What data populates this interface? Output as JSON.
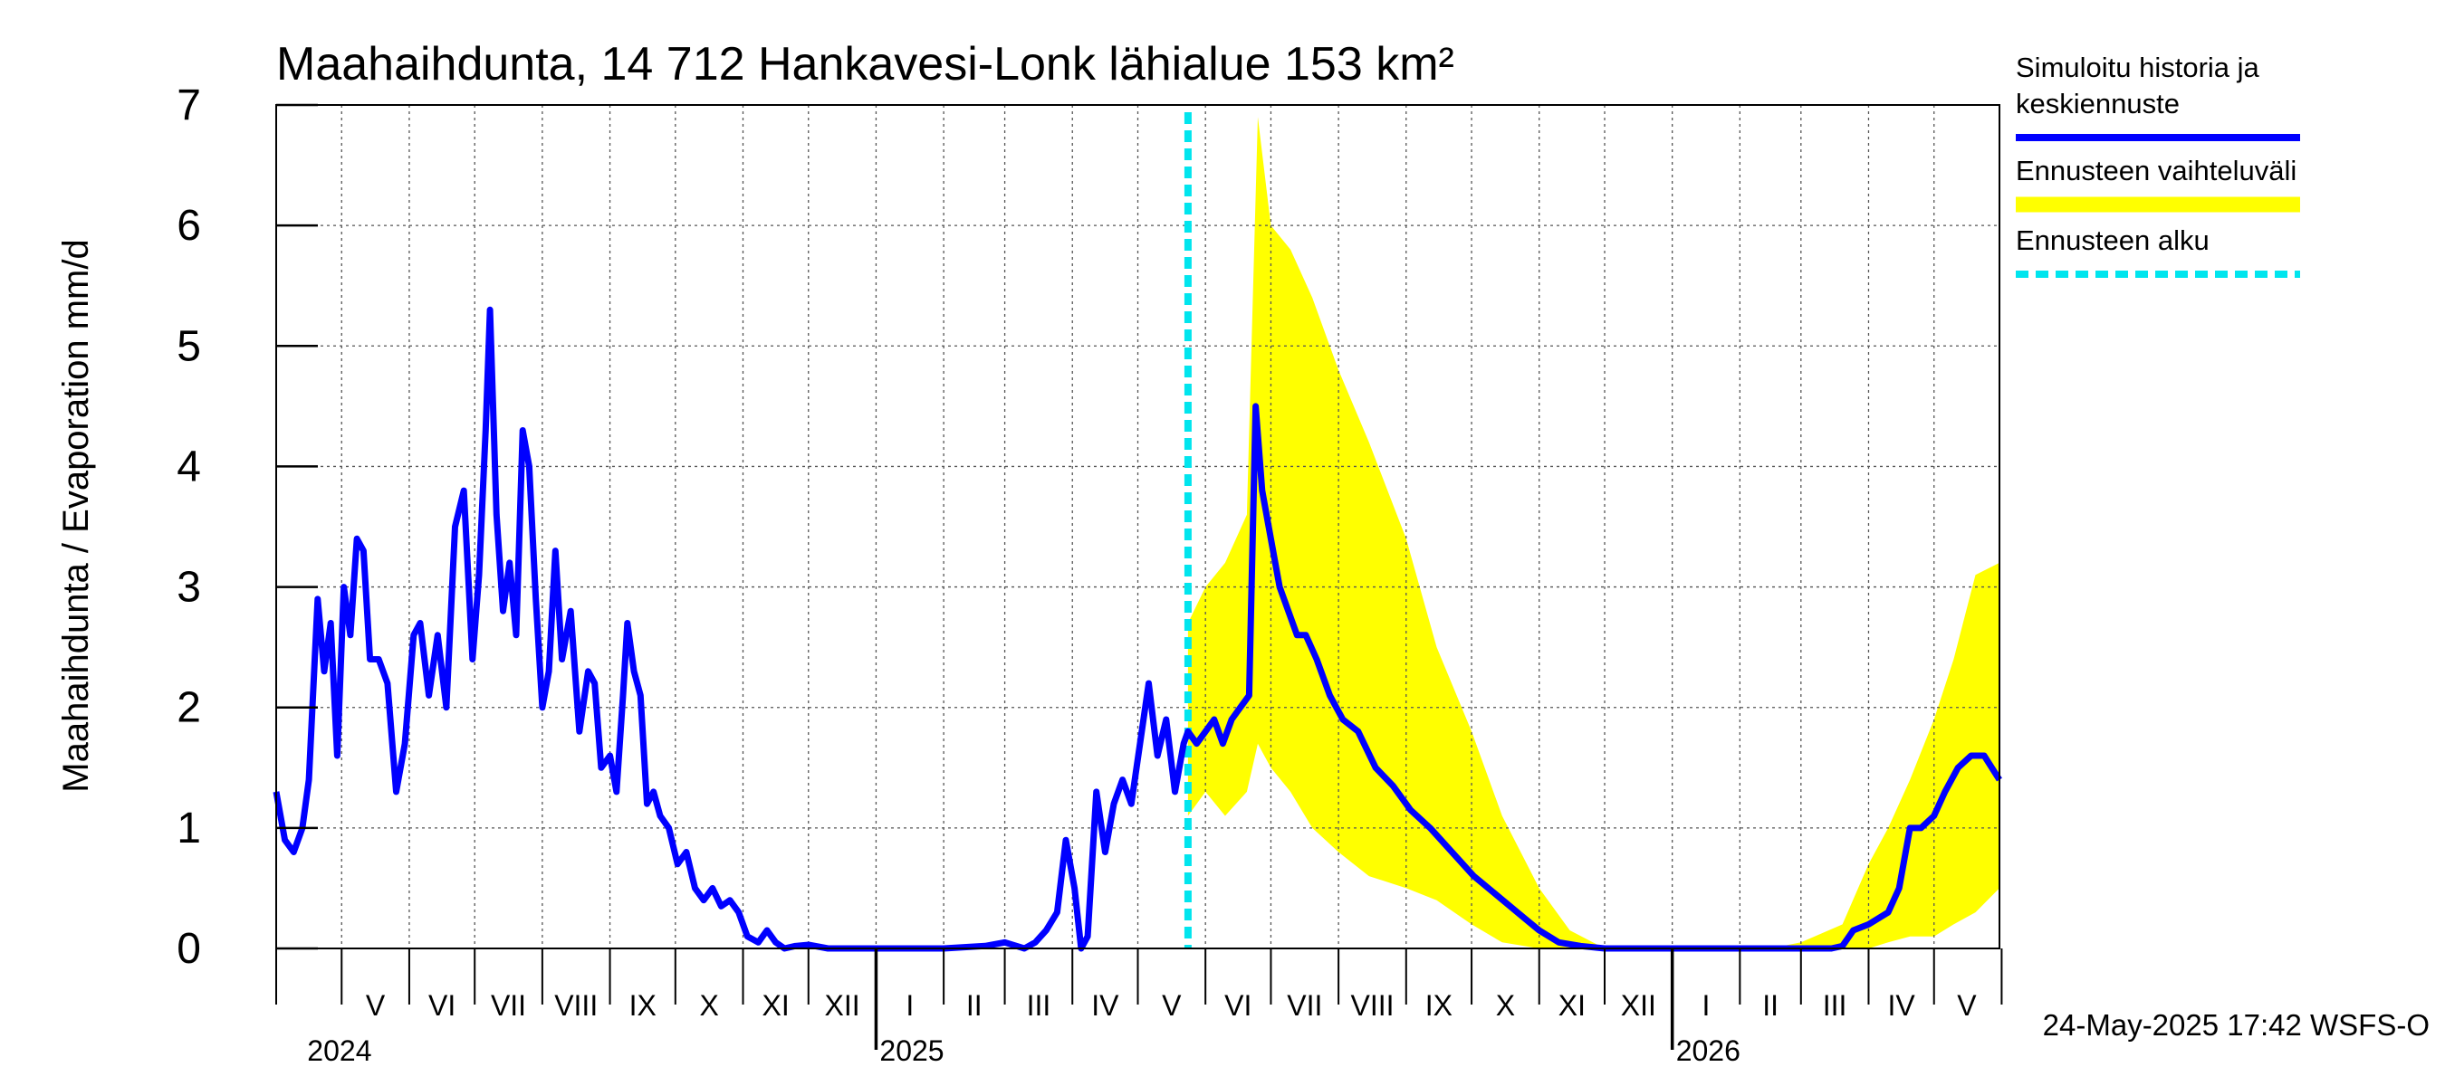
{
  "chart_data": {
    "type": "line",
    "title": "Maahaihdunta, 14 712 Hankavesi-Lonk lähialue 153 km²",
    "ylabel": "Maahaihdunta / Evaporation   mm/d",
    "ylim": [
      0,
      7
    ],
    "yticks": [
      "0",
      "1",
      "2",
      "3",
      "4",
      "5",
      "6",
      "7"
    ],
    "xlim": [
      "2024-04-01",
      "2026-05-31"
    ],
    "grid": true,
    "month_labels": [
      "V",
      "VI",
      "VII",
      "VIII",
      "IX",
      "X",
      "XI",
      "XII",
      "I",
      "II",
      "III",
      "IV",
      "V",
      "VI",
      "VII",
      "VIII",
      "IX",
      "X",
      "XI",
      "XII",
      "I",
      "II",
      "III",
      "IV",
      "V"
    ],
    "year_labels": [
      {
        "text": "2024",
        "date": "2024-05-01"
      },
      {
        "text": "2025",
        "date": "2025-01-01"
      },
      {
        "text": "2026",
        "date": "2026-01-01"
      }
    ],
    "forecast_start": "2025-05-24",
    "series": [
      {
        "name": "Simuloitu historia ja keskiennuste",
        "color": "#0000ff",
        "points": [
          [
            "2024-04-01",
            1.3
          ],
          [
            "2024-04-05",
            0.9
          ],
          [
            "2024-04-09",
            0.8
          ],
          [
            "2024-04-13",
            1.0
          ],
          [
            "2024-04-16",
            1.4
          ],
          [
            "2024-04-20",
            2.9
          ],
          [
            "2024-04-23",
            2.3
          ],
          [
            "2024-04-26",
            2.7
          ],
          [
            "2024-04-29",
            1.6
          ],
          [
            "2024-05-02",
            3.0
          ],
          [
            "2024-05-05",
            2.6
          ],
          [
            "2024-05-08",
            3.4
          ],
          [
            "2024-05-11",
            3.3
          ],
          [
            "2024-05-14",
            2.4
          ],
          [
            "2024-05-18",
            2.4
          ],
          [
            "2024-05-22",
            2.2
          ],
          [
            "2024-05-26",
            1.3
          ],
          [
            "2024-05-30",
            1.7
          ],
          [
            "2024-06-03",
            2.6
          ],
          [
            "2024-06-06",
            2.7
          ],
          [
            "2024-06-10",
            2.1
          ],
          [
            "2024-06-14",
            2.6
          ],
          [
            "2024-06-18",
            2.0
          ],
          [
            "2024-06-22",
            3.5
          ],
          [
            "2024-06-26",
            3.8
          ],
          [
            "2024-06-30",
            2.4
          ],
          [
            "2024-07-03",
            3.1
          ],
          [
            "2024-07-06",
            4.3
          ],
          [
            "2024-07-08",
            5.3
          ],
          [
            "2024-07-11",
            3.6
          ],
          [
            "2024-07-14",
            2.8
          ],
          [
            "2024-07-17",
            3.2
          ],
          [
            "2024-07-20",
            2.6
          ],
          [
            "2024-07-23",
            4.3
          ],
          [
            "2024-07-26",
            4.0
          ],
          [
            "2024-07-29",
            2.9
          ],
          [
            "2024-08-01",
            2.0
          ],
          [
            "2024-08-04",
            2.3
          ],
          [
            "2024-08-07",
            3.3
          ],
          [
            "2024-08-10",
            2.4
          ],
          [
            "2024-08-14",
            2.8
          ],
          [
            "2024-08-18",
            1.8
          ],
          [
            "2024-08-22",
            2.3
          ],
          [
            "2024-08-25",
            2.2
          ],
          [
            "2024-08-28",
            1.5
          ],
          [
            "2024-09-01",
            1.6
          ],
          [
            "2024-09-04",
            1.3
          ],
          [
            "2024-09-07",
            2.1
          ],
          [
            "2024-09-09",
            2.7
          ],
          [
            "2024-09-12",
            2.3
          ],
          [
            "2024-09-15",
            2.1
          ],
          [
            "2024-09-18",
            1.2
          ],
          [
            "2024-09-21",
            1.3
          ],
          [
            "2024-09-24",
            1.1
          ],
          [
            "2024-09-28",
            1.0
          ],
          [
            "2024-10-02",
            0.7
          ],
          [
            "2024-10-06",
            0.8
          ],
          [
            "2024-10-10",
            0.5
          ],
          [
            "2024-10-14",
            0.4
          ],
          [
            "2024-10-18",
            0.5
          ],
          [
            "2024-10-22",
            0.35
          ],
          [
            "2024-10-26",
            0.4
          ],
          [
            "2024-10-30",
            0.3
          ],
          [
            "2024-11-03",
            0.1
          ],
          [
            "2024-11-08",
            0.05
          ],
          [
            "2024-11-12",
            0.15
          ],
          [
            "2024-11-16",
            0.05
          ],
          [
            "2024-11-20",
            0.0
          ],
          [
            "2024-11-25",
            0.02
          ],
          [
            "2024-12-01",
            0.03
          ],
          [
            "2024-12-10",
            0.0
          ],
          [
            "2025-01-01",
            0.0
          ],
          [
            "2025-02-01",
            0.0
          ],
          [
            "2025-02-20",
            0.02
          ],
          [
            "2025-03-01",
            0.05
          ],
          [
            "2025-03-10",
            0.0
          ],
          [
            "2025-03-15",
            0.05
          ],
          [
            "2025-03-20",
            0.15
          ],
          [
            "2025-03-25",
            0.3
          ],
          [
            "2025-03-29",
            0.9
          ],
          [
            "2025-04-02",
            0.5
          ],
          [
            "2025-04-05",
            0.0
          ],
          [
            "2025-04-08",
            0.1
          ],
          [
            "2025-04-12",
            1.3
          ],
          [
            "2025-04-16",
            0.8
          ],
          [
            "2025-04-20",
            1.2
          ],
          [
            "2025-04-24",
            1.4
          ],
          [
            "2025-04-28",
            1.2
          ],
          [
            "2025-05-02",
            1.7
          ],
          [
            "2025-05-06",
            2.2
          ],
          [
            "2025-05-10",
            1.6
          ],
          [
            "2025-05-14",
            1.9
          ],
          [
            "2025-05-18",
            1.3
          ],
          [
            "2025-05-22",
            1.7
          ],
          [
            "2025-05-24",
            1.8
          ],
          [
            "2025-05-28",
            1.7
          ],
          [
            "2025-06-01",
            1.8
          ],
          [
            "2025-06-05",
            1.9
          ],
          [
            "2025-06-09",
            1.7
          ],
          [
            "2025-06-13",
            1.9
          ],
          [
            "2025-06-17",
            2.0
          ],
          [
            "2025-06-21",
            2.1
          ],
          [
            "2025-06-24",
            4.5
          ],
          [
            "2025-06-27",
            3.8
          ],
          [
            "2025-07-01",
            3.4
          ],
          [
            "2025-07-05",
            3.0
          ],
          [
            "2025-07-09",
            2.8
          ],
          [
            "2025-07-13",
            2.6
          ],
          [
            "2025-07-17",
            2.6
          ],
          [
            "2025-07-22",
            2.4
          ],
          [
            "2025-07-28",
            2.1
          ],
          [
            "2025-08-03",
            1.9
          ],
          [
            "2025-08-10",
            1.8
          ],
          [
            "2025-08-18",
            1.5
          ],
          [
            "2025-08-26",
            1.35
          ],
          [
            "2025-09-03",
            1.15
          ],
          [
            "2025-09-12",
            1.0
          ],
          [
            "2025-09-22",
            0.8
          ],
          [
            "2025-10-02",
            0.6
          ],
          [
            "2025-10-12",
            0.45
          ],
          [
            "2025-10-22",
            0.3
          ],
          [
            "2025-11-01",
            0.15
          ],
          [
            "2025-11-10",
            0.05
          ],
          [
            "2025-11-20",
            0.02
          ],
          [
            "2025-12-01",
            0.0
          ],
          [
            "2026-01-01",
            0.0
          ],
          [
            "2026-02-01",
            0.0
          ],
          [
            "2026-03-01",
            0.0
          ],
          [
            "2026-03-15",
            0.0
          ],
          [
            "2026-03-20",
            0.02
          ],
          [
            "2026-03-25",
            0.15
          ],
          [
            "2026-04-01",
            0.2
          ],
          [
            "2026-04-10",
            0.3
          ],
          [
            "2026-04-15",
            0.5
          ],
          [
            "2026-04-20",
            1.0
          ],
          [
            "2026-04-25",
            1.0
          ],
          [
            "2026-05-01",
            1.1
          ],
          [
            "2026-05-06",
            1.3
          ],
          [
            "2026-05-12",
            1.5
          ],
          [
            "2026-05-18",
            1.6
          ],
          [
            "2026-05-24",
            1.6
          ],
          [
            "2026-05-31",
            1.4
          ]
        ]
      },
      {
        "name": "Ennusteen vaihteluväli",
        "color": "#ffff00",
        "band": [
          [
            "2025-05-24",
            1.1,
            2.7
          ],
          [
            "2025-06-01",
            1.3,
            3.0
          ],
          [
            "2025-06-10",
            1.1,
            3.2
          ],
          [
            "2025-06-20",
            1.3,
            3.6
          ],
          [
            "2025-06-25",
            1.7,
            6.9
          ],
          [
            "2025-07-01",
            1.5,
            6.0
          ],
          [
            "2025-07-10",
            1.3,
            5.8
          ],
          [
            "2025-07-20",
            1.0,
            5.4
          ],
          [
            "2025-08-01",
            0.8,
            4.8
          ],
          [
            "2025-08-15",
            0.6,
            4.2
          ],
          [
            "2025-09-01",
            0.5,
            3.4
          ],
          [
            "2025-09-15",
            0.4,
            2.5
          ],
          [
            "2025-10-01",
            0.2,
            1.8
          ],
          [
            "2025-10-15",
            0.05,
            1.1
          ],
          [
            "2025-11-01",
            0.0,
            0.5
          ],
          [
            "2025-11-15",
            0.0,
            0.15
          ],
          [
            "2025-12-01",
            0.0,
            0.0
          ],
          [
            "2026-02-15",
            0.0,
            0.0
          ],
          [
            "2026-03-01",
            0.0,
            0.05
          ],
          [
            "2026-03-20",
            0.0,
            0.2
          ],
          [
            "2026-04-01",
            0.0,
            0.7
          ],
          [
            "2026-04-10",
            0.05,
            1.0
          ],
          [
            "2026-04-20",
            0.1,
            1.4
          ],
          [
            "2026-05-01",
            0.1,
            1.9
          ],
          [
            "2026-05-10",
            0.2,
            2.4
          ],
          [
            "2026-05-20",
            0.3,
            3.1
          ],
          [
            "2026-05-31",
            0.5,
            3.2
          ]
        ]
      },
      {
        "name": "Ennusteen alku",
        "color": "#00e5ee"
      }
    ]
  },
  "legend": {
    "items": [
      {
        "label_lines": [
          "Simuloitu historia ja",
          "keskiennuste"
        ],
        "color": "#0000ff",
        "style": "solid"
      },
      {
        "label_lines": [
          "Ennusteen vaihteluväli"
        ],
        "color": "#ffff00",
        "style": "solid"
      },
      {
        "label_lines": [
          "Ennusteen alku"
        ],
        "color": "#00e5ee",
        "style": "dashed"
      }
    ]
  },
  "footer": "24-May-2025 17:42 WSFS-O"
}
